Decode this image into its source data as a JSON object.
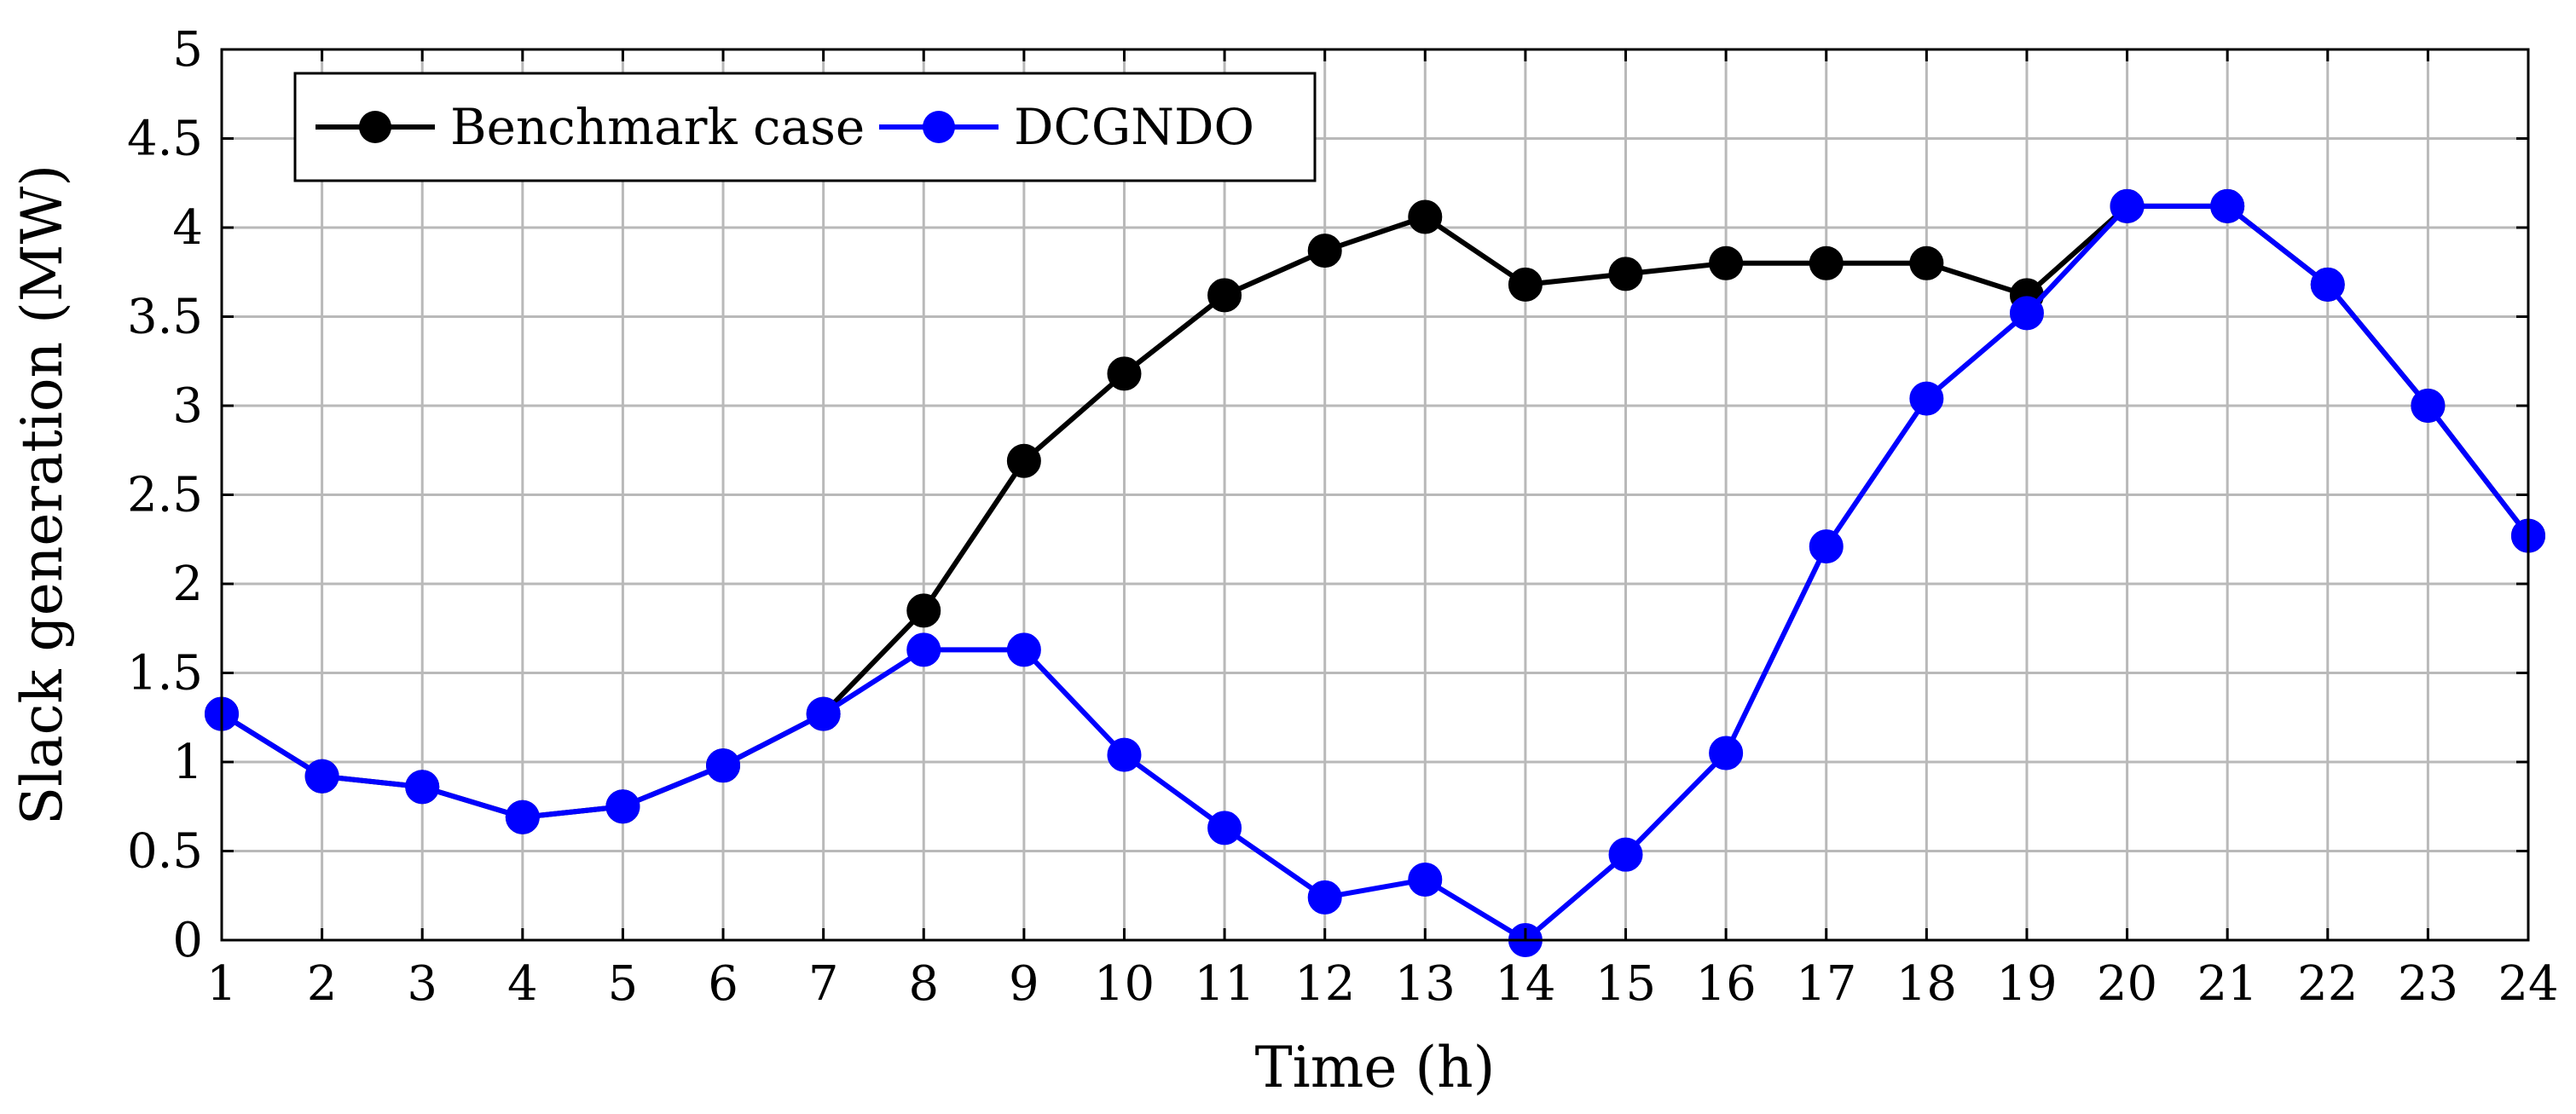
{
  "chart_data": {
    "type": "line",
    "title": "",
    "xlabel": "Time (h)",
    "ylabel": "Slack generation (MW)",
    "xlim": [
      1,
      24
    ],
    "ylim": [
      0,
      5
    ],
    "x_ticks": [
      1,
      2,
      3,
      4,
      5,
      6,
      7,
      8,
      9,
      10,
      11,
      12,
      13,
      14,
      15,
      16,
      17,
      18,
      19,
      20,
      21,
      22,
      23,
      24
    ],
    "y_ticks": [
      0,
      0.5,
      1,
      1.5,
      2,
      2.5,
      3,
      3.5,
      4,
      4.5,
      5
    ],
    "y_tick_labels": [
      "0",
      "0.5",
      "1",
      "1.5",
      "2",
      "2.5",
      "3",
      "3.5",
      "4",
      "4.5",
      "5"
    ],
    "grid": true,
    "legend_position": "top-left",
    "x": [
      1,
      2,
      3,
      4,
      5,
      6,
      7,
      8,
      9,
      10,
      11,
      12,
      13,
      14,
      15,
      16,
      17,
      18,
      19,
      20,
      21,
      22,
      23,
      24
    ],
    "series": [
      {
        "name": "Benchmark case",
        "color": "#000000",
        "values": [
          1.27,
          0.92,
          0.86,
          0.69,
          0.75,
          0.98,
          1.27,
          1.85,
          2.69,
          3.18,
          3.62,
          3.87,
          4.06,
          3.68,
          3.74,
          3.8,
          3.8,
          3.8,
          3.62,
          4.12,
          4.12,
          3.68,
          3.0,
          2.27
        ]
      },
      {
        "name": "DCGNDO",
        "color": "#0000ff",
        "values": [
          1.27,
          0.92,
          0.86,
          0.69,
          0.75,
          0.98,
          1.27,
          1.63,
          1.63,
          1.04,
          0.63,
          0.24,
          0.34,
          0.0,
          0.48,
          1.05,
          2.21,
          3.04,
          3.52,
          4.12,
          4.12,
          3.68,
          3.0,
          2.27
        ]
      }
    ]
  }
}
